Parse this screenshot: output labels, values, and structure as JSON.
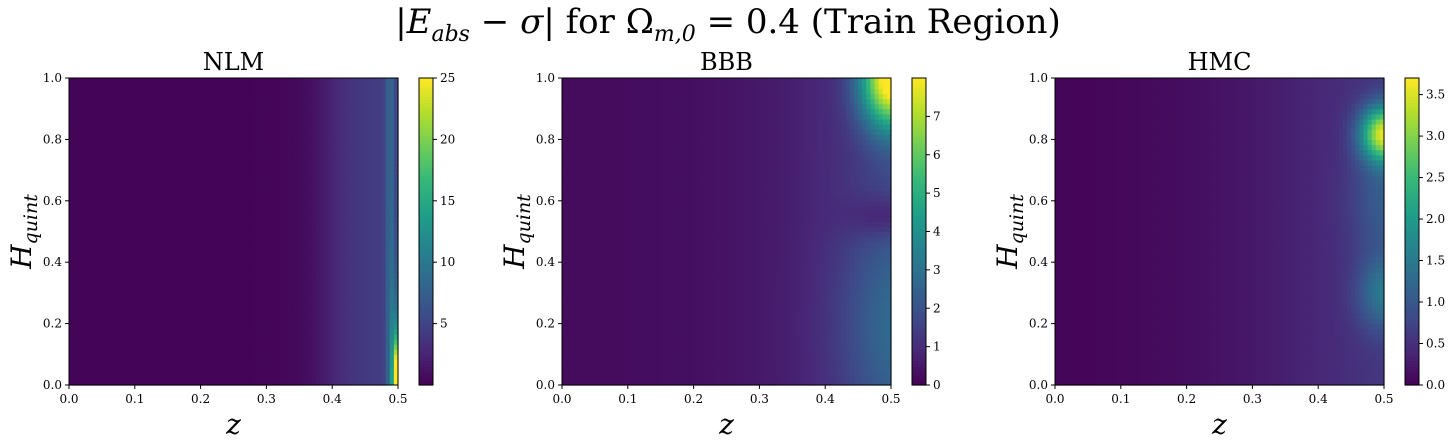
{
  "figure": {
    "suptitle_parts": [
      "|",
      "E",
      "abs",
      " − ",
      "σ",
      "| for ",
      "Ω",
      "m,0",
      " = 0.4 (Train Region)"
    ]
  },
  "chart_data": [
    {
      "type": "heatmap",
      "title": "NLM",
      "xlabel": "z",
      "ylabel_main": "H",
      "ylabel_sub": "quint",
      "xlim": [
        0.0,
        0.5
      ],
      "ylim": [
        0.0,
        1.0
      ],
      "xticks": [
        "0.0",
        "0.1",
        "0.2",
        "0.3",
        "0.4",
        "0.5"
      ],
      "yticks": [
        "0.0",
        "0.2",
        "0.4",
        "0.6",
        "0.8",
        "1.0"
      ],
      "colorbar_range": [
        0,
        25
      ],
      "colorbar_ticks": [
        "5",
        "10",
        "15",
        "20",
        "25"
      ],
      "colormap": "viridis",
      "description": "Error low (~0–1) for z < 0.3, rises to ~4–5 around z ≈ 0.45, with a sharp edge reaching ~25 near z = 0.5 at low H_quint."
    },
    {
      "type": "heatmap",
      "title": "BBB",
      "xlabel": "z",
      "ylabel_main": "H",
      "ylabel_sub": "quint",
      "xlim": [
        0.0,
        0.5
      ],
      "ylim": [
        0.0,
        1.0
      ],
      "xticks": [
        "0.0",
        "0.1",
        "0.2",
        "0.3",
        "0.4",
        "0.5"
      ],
      "yticks": [
        "0.0",
        "0.2",
        "0.4",
        "0.6",
        "0.8",
        "1.0"
      ],
      "colorbar_range": [
        0,
        8
      ],
      "colorbar_ticks": [
        "0",
        "1",
        "2",
        "3",
        "4",
        "5",
        "6",
        "7"
      ],
      "colormap": "viridis",
      "description": "Mostly ~0–1; peak ~7.5 at top-right corner (z ≈ 0.5, H_quint ≈ 1.0) with a dark dip near z ≈ 0.5, H_quint ≈ 0.55."
    },
    {
      "type": "heatmap",
      "title": "HMC",
      "xlabel": "z",
      "ylabel_main": "H",
      "ylabel_sub": "quint",
      "xlim": [
        0.0,
        0.5
      ],
      "ylim": [
        0.0,
        1.0
      ],
      "xticks": [
        "0.0",
        "0.1",
        "0.2",
        "0.3",
        "0.4",
        "0.5"
      ],
      "yticks": [
        "0.0",
        "0.2",
        "0.4",
        "0.6",
        "0.8",
        "1.0"
      ],
      "colorbar_range": [
        0,
        3.7
      ],
      "colorbar_ticks": [
        "0.0",
        "0.5",
        "1.0",
        "1.5",
        "2.0",
        "2.5",
        "3.0",
        "3.5"
      ],
      "colormap": "viridis",
      "description": "Low ~0–0.7 across most of the domain; bright region ~3.5 near z ≈ 0.5, H_quint ≈ 0.8, secondary ~1.2 near z ≈ 0.5, H_quint ≈ 0.3."
    }
  ]
}
